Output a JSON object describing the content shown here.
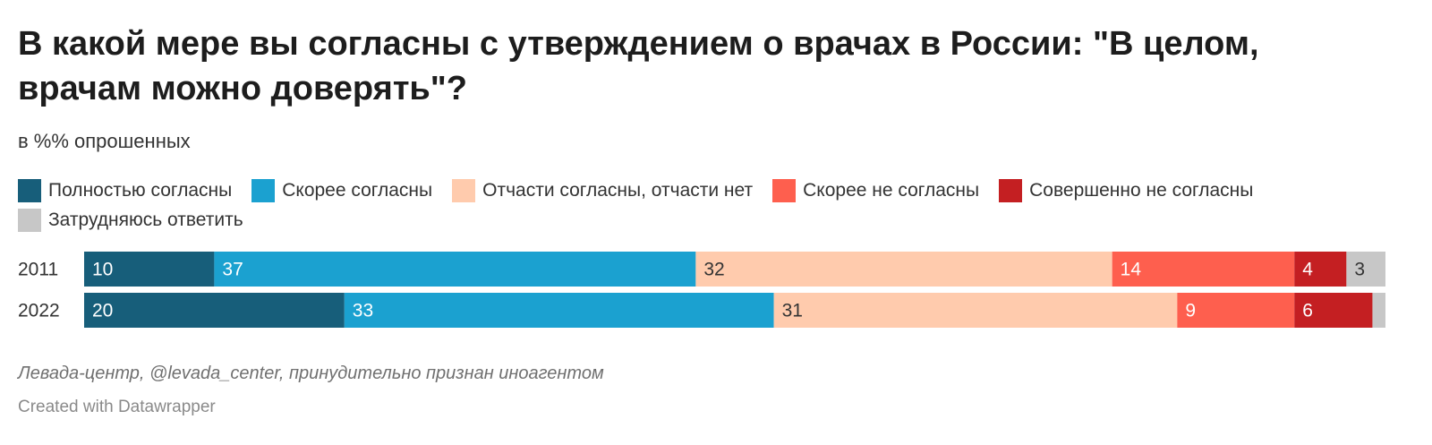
{
  "title": "В какой мере вы согласны с утверждением о врачах в России: \"В целом, врачам можно доверять\"?",
  "subtitle": "в %% опрошенных",
  "legend": [
    {
      "label": "Полностью согласны",
      "color": "#175e7a"
    },
    {
      "label": "Скорее согласны",
      "color": "#1ba1d0"
    },
    {
      "label": "Отчасти согласны, отчасти нет",
      "color": "#ffcbad"
    },
    {
      "label": "Скорее не согласны",
      "color": "#fe5f4e"
    },
    {
      "label": "Совершенно не согласны",
      "color": "#c41f22"
    },
    {
      "label": "Затрудняюсь ответить",
      "color": "#c7c7c7"
    }
  ],
  "chart_data": {
    "type": "bar",
    "orientation": "horizontal-stacked",
    "categories": [
      "2011",
      "2022"
    ],
    "series": [
      {
        "name": "Полностью согласны",
        "values": [
          10,
          20
        ],
        "labels": [
          "10",
          "20"
        ],
        "label_color": "#ffffff"
      },
      {
        "name": "Скорее согласны",
        "values": [
          37,
          33
        ],
        "labels": [
          "37",
          "33"
        ],
        "label_color": "#ffffff"
      },
      {
        "name": "Отчасти согласны, отчасти нет",
        "values": [
          32,
          31
        ],
        "labels": [
          "32",
          "31"
        ],
        "label_color": "#333333"
      },
      {
        "name": "Скорее не согласны",
        "values": [
          14,
          9
        ],
        "labels": [
          "14",
          "9"
        ],
        "label_color": "#ffffff"
      },
      {
        "name": "Совершенно не согласны",
        "values": [
          4,
          6
        ],
        "labels": [
          "4",
          "6"
        ],
        "label_color": "#ffffff"
      },
      {
        "name": "Затрудняюсь ответить",
        "values": [
          3,
          1
        ],
        "labels": [
          "3",
          ""
        ],
        "label_color": "#333333"
      }
    ],
    "xlim": [
      0,
      100
    ],
    "grid": false,
    "legend_position": "top"
  },
  "footer": {
    "source": "Левада-центр, @levada_center, принудительно признан иноагентом",
    "credit": "Created with Datawrapper"
  }
}
